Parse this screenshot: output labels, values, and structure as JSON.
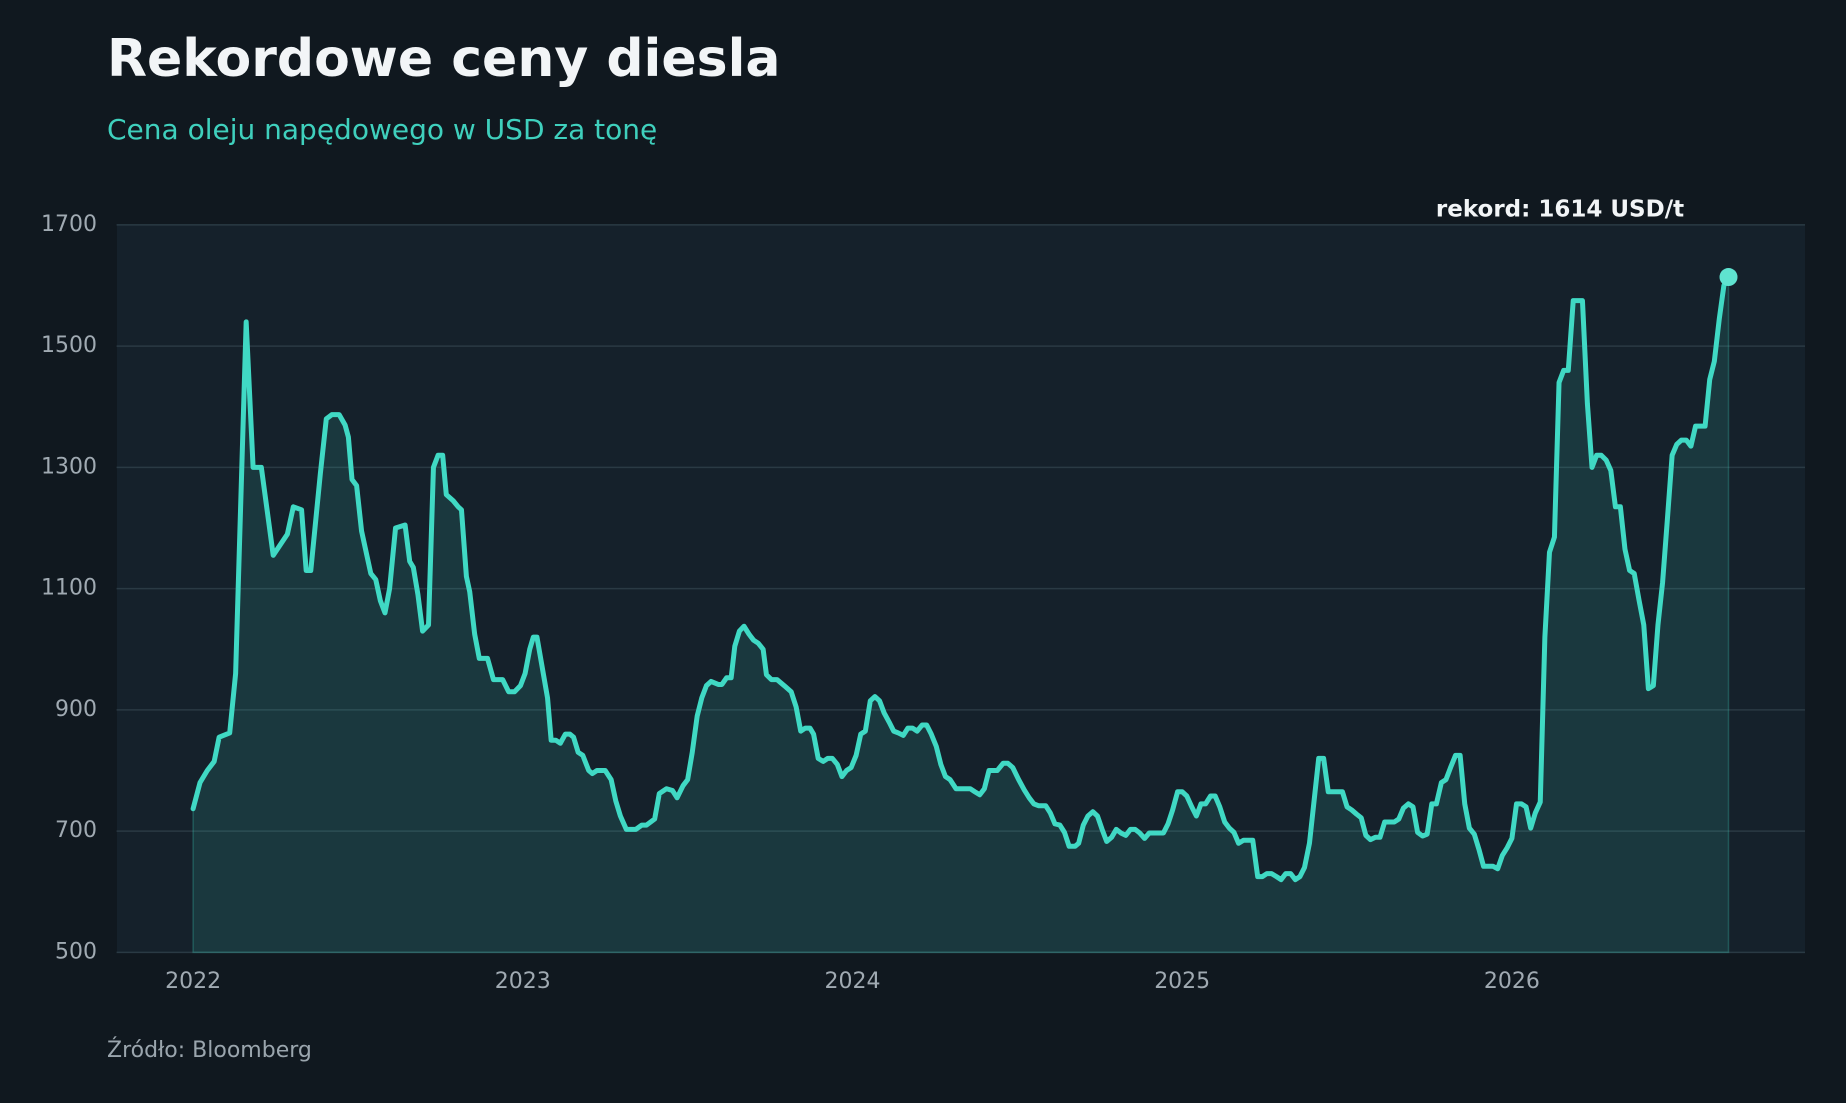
{
  "chart_data": {
    "type": "line",
    "title": "Rekordowe ceny diesla",
    "subtitle": "Cena oleju napędowego w USD za tonę",
    "annotation": "rekord: 1614 USD/t",
    "source": "Źródło: Bloomberg",
    "color": "#40d9c4",
    "grid": true,
    "xlim": [
      2021.768,
      2026.889
    ],
    "xticks": [
      2022,
      2023,
      2024,
      2025,
      2026
    ],
    "ylim": [
      500,
      1700
    ],
    "yticks": [
      500,
      700,
      900,
      1100,
      1300,
      1500,
      1700
    ],
    "x": [
      2022.0,
      2022.021,
      2022.043,
      2022.064,
      2022.079,
      2022.111,
      2022.129,
      2022.161,
      2022.182,
      2022.207,
      2022.243,
      2022.286,
      2022.304,
      2022.329,
      2022.343,
      2022.357,
      2022.386,
      2022.404,
      2022.421,
      2022.443,
      2022.461,
      2022.471,
      2022.482,
      2022.496,
      2022.511,
      2022.539,
      2022.554,
      2022.568,
      2022.582,
      2022.596,
      2022.614,
      2022.643,
      2022.657,
      2022.668,
      2022.682,
      2022.696,
      2022.714,
      2022.729,
      2022.743,
      2022.757,
      2022.768,
      2022.789,
      2022.804,
      2022.814,
      2022.829,
      2022.839,
      2022.854,
      2022.868,
      2022.893,
      2022.911,
      2022.939,
      2022.957,
      2022.975,
      2022.993,
      2023.007,
      2023.021,
      2023.032,
      2023.043,
      2023.075,
      2023.086,
      2023.1,
      2023.114,
      2023.129,
      2023.143,
      2023.154,
      2023.168,
      2023.182,
      2023.2,
      2023.211,
      2023.225,
      2023.25,
      2023.268,
      2023.282,
      2023.296,
      2023.314,
      2023.343,
      2023.361,
      2023.375,
      2023.4,
      2023.414,
      2023.436,
      2023.454,
      2023.468,
      2023.486,
      2023.5,
      2023.514,
      2023.529,
      2023.543,
      2023.557,
      2023.571,
      2023.593,
      2023.604,
      2023.618,
      2023.632,
      2023.643,
      2023.657,
      2023.671,
      2023.686,
      2023.7,
      2023.714,
      2023.729,
      2023.739,
      2023.754,
      2023.771,
      2023.793,
      2023.814,
      2023.829,
      2023.843,
      2023.857,
      2023.871,
      2023.882,
      2023.896,
      2023.911,
      2023.925,
      2023.939,
      2023.954,
      2023.968,
      2023.982,
      2023.996,
      2024.011,
      2024.025,
      2024.039,
      2024.054,
      2024.068,
      2024.082,
      2024.096,
      2024.111,
      2024.125,
      2024.139,
      2024.154,
      2024.168,
      2024.182,
      2024.196,
      2024.211,
      2024.225,
      2024.239,
      2024.254,
      2024.268,
      2024.282,
      2024.296,
      2024.314,
      2024.357,
      2024.371,
      2024.386,
      2024.4,
      2024.414,
      2024.439,
      2024.457,
      2024.471,
      2024.486,
      2024.504,
      2024.521,
      2024.536,
      2024.55,
      2024.564,
      2024.586,
      2024.6,
      2024.614,
      2024.629,
      2024.643,
      2024.657,
      2024.675,
      2024.686,
      2024.7,
      2024.714,
      2024.729,
      2024.743,
      2024.757,
      2024.771,
      2024.786,
      2024.8,
      2024.814,
      2024.829,
      2024.843,
      2024.857,
      2024.871,
      2024.886,
      2024.9,
      2024.943,
      2024.957,
      2024.971,
      2024.986,
      2025.0,
      2025.014,
      2025.029,
      2025.043,
      2025.057,
      2025.071,
      2025.086,
      2025.1,
      2025.114,
      2025.129,
      2025.143,
      2025.157,
      2025.171,
      2025.186,
      2025.214,
      2025.229,
      2025.243,
      2025.257,
      2025.271,
      2025.286,
      2025.3,
      2025.314,
      2025.329,
      2025.343,
      2025.357,
      2025.371,
      2025.386,
      2025.4,
      2025.414,
      2025.429,
      2025.443,
      2025.486,
      2025.5,
      2025.514,
      2025.529,
      2025.543,
      2025.557,
      2025.571,
      2025.586,
      2025.6,
      2025.614,
      2025.643,
      2025.657,
      2025.671,
      2025.686,
      2025.7,
      2025.714,
      2025.729,
      2025.743,
      2025.757,
      2025.771,
      2025.786,
      2025.8,
      2025.814,
      2025.829,
      2025.843,
      2025.857,
      2025.871,
      2025.886,
      2025.9,
      2025.914,
      2025.943,
      2025.957,
      2025.971,
      2025.986,
      2026.0,
      2026.014,
      2026.029,
      2026.043,
      2026.057,
      2026.071,
      2026.086,
      2026.1,
      2026.114,
      2026.129,
      2026.143,
      2026.157,
      2026.171,
      2026.186,
      2026.214,
      2026.229,
      2026.243,
      2026.257,
      2026.271,
      2026.286,
      2026.3,
      2026.314,
      2026.329,
      2026.343,
      2026.357,
      2026.371,
      2026.386,
      2026.4,
      2026.414,
      2026.429,
      2026.443,
      2026.457,
      2026.471,
      2026.486,
      2026.5,
      2026.514,
      2026.529,
      2026.543,
      2026.557,
      2026.586,
      2026.6,
      2026.614,
      2026.629,
      2026.643,
      2026.657
    ],
    "values": [
      737,
      780,
      800,
      815,
      855,
      862,
      960,
      1540,
      1300,
      1300,
      1155,
      1190,
      1235,
      1230,
      1130,
      1130,
      1290,
      1380,
      1387,
      1387,
      1370,
      1350,
      1280,
      1270,
      1195,
      1125,
      1115,
      1080,
      1060,
      1100,
      1200,
      1205,
      1145,
      1135,
      1090,
      1030,
      1040,
      1300,
      1320,
      1320,
      1255,
      1245,
      1235,
      1230,
      1120,
      1095,
      1025,
      985,
      985,
      950,
      950,
      930,
      930,
      940,
      960,
      1000,
      1020,
      1020,
      920,
      850,
      850,
      845,
      860,
      860,
      855,
      830,
      825,
      800,
      795,
      800,
      800,
      785,
      750,
      725,
      703,
      703,
      710,
      710,
      720,
      762,
      770,
      767,
      755,
      775,
      785,
      830,
      890,
      920,
      940,
      947,
      942,
      942,
      953,
      953,
      1005,
      1030,
      1038,
      1025,
      1015,
      1010,
      1000,
      958,
      950,
      950,
      940,
      930,
      905,
      865,
      870,
      870,
      860,
      820,
      815,
      820,
      820,
      810,
      790,
      800,
      805,
      825,
      860,
      865,
      915,
      922,
      915,
      895,
      880,
      865,
      862,
      858,
      870,
      870,
      865,
      875,
      875,
      860,
      840,
      810,
      790,
      785,
      770,
      770,
      765,
      760,
      770,
      800,
      800,
      812,
      812,
      805,
      785,
      768,
      755,
      745,
      742,
      742,
      730,
      712,
      710,
      698,
      675,
      675,
      680,
      710,
      725,
      732,
      725,
      703,
      683,
      690,
      703,
      697,
      693,
      703,
      703,
      697,
      688,
      697,
      697,
      712,
      735,
      765,
      765,
      758,
      740,
      725,
      745,
      745,
      758,
      758,
      740,
      715,
      705,
      698,
      680,
      685,
      685,
      625,
      625,
      630,
      630,
      625,
      620,
      630,
      630,
      620,
      625,
      640,
      680,
      750,
      820,
      820,
      765,
      765,
      740,
      735,
      728,
      722,
      693,
      686,
      690,
      690,
      715,
      715,
      720,
      738,
      745,
      740,
      698,
      692,
      695,
      745,
      745,
      780,
      785,
      805,
      825,
      825,
      745,
      705,
      695,
      670,
      642,
      642,
      638,
      660,
      673,
      688,
      745,
      745,
      740,
      705,
      730,
      748,
      1020,
      1160,
      1185,
      1440,
      1460,
      1460,
      1575,
      1575,
      1405,
      1300,
      1320,
      1320,
      1312,
      1295,
      1235,
      1235,
      1165,
      1130,
      1125,
      1080,
      1040,
      935,
      940,
      1040,
      1110,
      1210,
      1320,
      1338,
      1345,
      1345,
      1335,
      1368,
      1368,
      1445,
      1475,
      1545,
      1600,
      1614
    ]
  }
}
